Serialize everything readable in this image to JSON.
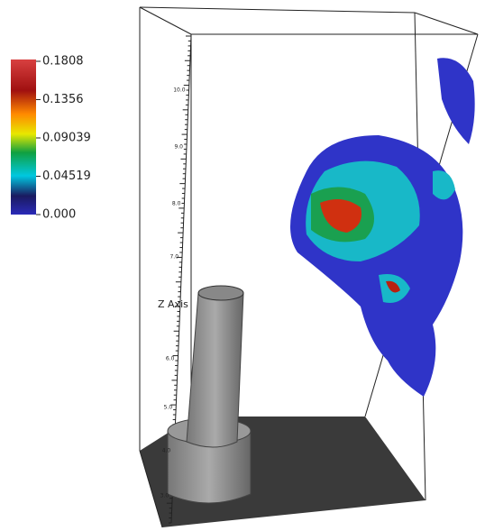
{
  "colorbar": {
    "labels": [
      "0.1808",
      "0.1356",
      "0.09039",
      "0.04519",
      "0.000"
    ]
  },
  "axis": {
    "label": "Z Axis",
    "ticks": [
      "10.0",
      "9.0",
      "8.0",
      "7.0",
      "6.0",
      "5.0",
      "4.0",
      "3.0"
    ]
  }
}
